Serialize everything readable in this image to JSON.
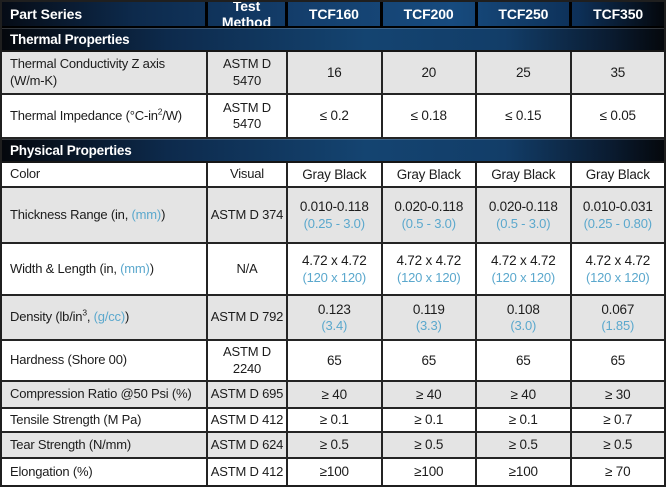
{
  "colors": {
    "accent_blue": "#5ba8cd",
    "header_navy": "#174b7e",
    "row_gray": "#e4e4e4",
    "border_dark": "#242424"
  },
  "header": {
    "part_series": "Part Series",
    "test_method": "Test Method",
    "series": [
      "TCF160",
      "TCF200",
      "TCF250",
      "TCF350"
    ]
  },
  "rows": [
    {
      "type": "band",
      "label": "Thermal Properties"
    },
    {
      "type": "data",
      "shaded": true,
      "label": [
        {
          "t": "Thermal Conductivity Z axis (W/m-K)"
        }
      ],
      "method": "ASTM D\n5470",
      "values": [
        {
          "main": "16"
        },
        {
          "main": "20"
        },
        {
          "main": "25"
        },
        {
          "main": "35"
        }
      ]
    },
    {
      "type": "data",
      "shaded": false,
      "label": [
        {
          "t": "Thermal Impedance (°C-in"
        },
        {
          "t": "2",
          "sup": true
        },
        {
          "t": "/W)"
        }
      ],
      "method": "ASTM D\n5470",
      "values": [
        {
          "main": "≤ 0.2"
        },
        {
          "main": "≤ 0.18"
        },
        {
          "main": "≤ 0.15"
        },
        {
          "main": "≤ 0.05"
        }
      ]
    },
    {
      "type": "band",
      "label": "Physical Properties"
    },
    {
      "type": "data",
      "shaded": false,
      "label": [
        {
          "t": "Color"
        }
      ],
      "method": "Visual",
      "values": [
        {
          "main": "Gray Black"
        },
        {
          "main": "Gray Black"
        },
        {
          "main": "Gray Black"
        },
        {
          "main": "Gray Black"
        }
      ]
    },
    {
      "type": "data",
      "shaded": true,
      "label": [
        {
          "t": "Thickness Range (in, "
        },
        {
          "t": "(mm)",
          "blue": true
        },
        {
          "t": ")"
        }
      ],
      "method": "ASTM D 374",
      "values": [
        {
          "main": "0.010-0.118",
          "sub": "(0.25 - 3.0)"
        },
        {
          "main": "0.020-0.118",
          "sub": "(0.5 - 3.0)"
        },
        {
          "main": "0.020-0.118",
          "sub": "(0.5 - 3.0)"
        },
        {
          "main": "0.010-0.031",
          "sub": "(0.25 - 0.80)"
        }
      ]
    },
    {
      "type": "data",
      "shaded": false,
      "label": [
        {
          "t": "Width & Length (in, "
        },
        {
          "t": "(mm)",
          "blue": true
        },
        {
          "t": ")"
        }
      ],
      "method": "N/A",
      "values": [
        {
          "main": "4.72 x 4.72",
          "sub": "(120 x 120)"
        },
        {
          "main": "4.72 x 4.72",
          "sub": "(120 x 120)"
        },
        {
          "main": "4.72 x 4.72",
          "sub": "(120 x 120)"
        },
        {
          "main": "4.72 x 4.72",
          "sub": "(120 x 120)"
        }
      ]
    },
    {
      "type": "data",
      "shaded": true,
      "label": [
        {
          "t": "Density (lb/in"
        },
        {
          "t": "3",
          "sup": true
        },
        {
          "t": ", "
        },
        {
          "t": "(g/cc)",
          "blue": true
        },
        {
          "t": ")"
        }
      ],
      "method": "ASTM D 792",
      "values": [
        {
          "main": "0.123",
          "sub": "(3.4)"
        },
        {
          "main": "0.119",
          "sub": "(3.3)"
        },
        {
          "main": "0.108",
          "sub": "(3.0)"
        },
        {
          "main": "0.067",
          "sub": "(1.85)"
        }
      ]
    },
    {
      "type": "data",
      "shaded": false,
      "label": [
        {
          "t": "Hardness (Shore 00)"
        }
      ],
      "method": "ASTM D\n2240",
      "values": [
        {
          "main": "65"
        },
        {
          "main": "65"
        },
        {
          "main": "65"
        },
        {
          "main": "65"
        }
      ]
    },
    {
      "type": "data",
      "shaded": true,
      "label": [
        {
          "t": "Compression Ratio @50 Psi (%)"
        }
      ],
      "method": "ASTM D 695",
      "values": [
        {
          "main": "≥ 40"
        },
        {
          "main": "≥ 40"
        },
        {
          "main": "≥ 40"
        },
        {
          "main": "≥ 30"
        }
      ]
    },
    {
      "type": "data",
      "shaded": false,
      "label": [
        {
          "t": "Tensile Strength (M Pa)"
        }
      ],
      "method": "ASTM D 412",
      "values": [
        {
          "main": "≥ 0.1"
        },
        {
          "main": "≥ 0.1"
        },
        {
          "main": "≥ 0.1"
        },
        {
          "main": "≥ 0.7"
        }
      ]
    },
    {
      "type": "data",
      "shaded": true,
      "label": [
        {
          "t": "Tear Strength (N/mm)"
        }
      ],
      "method": "ASTM D 624",
      "values": [
        {
          "main": "≥ 0.5"
        },
        {
          "main": "≥ 0.5"
        },
        {
          "main": "≥ 0.5"
        },
        {
          "main": "≥ 0.5"
        }
      ]
    },
    {
      "type": "data",
      "shaded": false,
      "label": [
        {
          "t": "Elongation (%)"
        }
      ],
      "method": "ASTM D 412",
      "values": [
        {
          "main": "≥100"
        },
        {
          "main": "≥100"
        },
        {
          "main": "≥100"
        },
        {
          "main": "≥ 70"
        }
      ]
    }
  ]
}
